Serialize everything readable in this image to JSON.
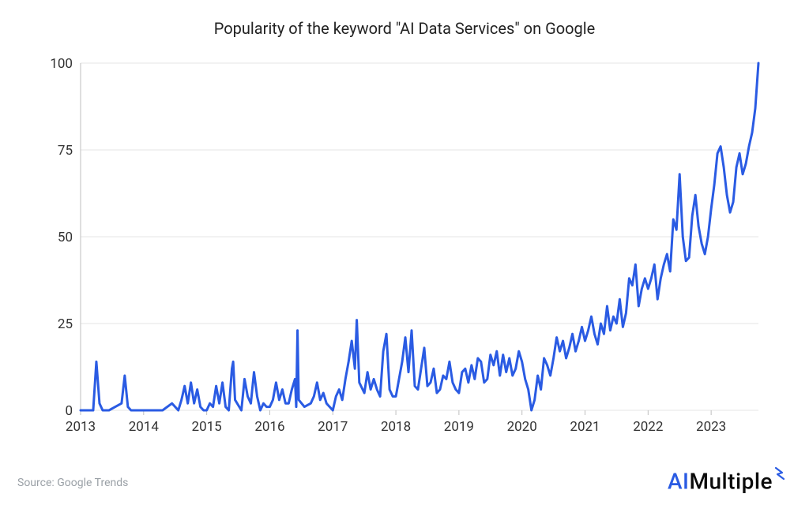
{
  "title": "Popularity of the keyword \"AI Data Services\" on Google",
  "source_label": "Source: Google Trends",
  "brand": {
    "prefix": "AI",
    "rest": "Multiple"
  },
  "chart": {
    "type": "line",
    "background_color": "#ffffff",
    "grid_color": "#e4e4e4",
    "axis_color": "#bfbfbf",
    "line_color": "#2a5be3",
    "line_width": 3,
    "title_fontsize": 20,
    "tick_fontsize": 17,
    "xlim": [
      2013,
      2023.75
    ],
    "ylim": [
      0,
      100
    ],
    "yticks": [
      0,
      25,
      50,
      75,
      100
    ],
    "xticks": [
      2013,
      2014,
      2015,
      2016,
      2017,
      2018,
      2019,
      2020,
      2021,
      2022,
      2023
    ],
    "x": [
      2013.0,
      2013.05,
      2013.1,
      2013.15,
      2013.2,
      2013.25,
      2013.3,
      2013.35,
      2013.4,
      2013.45,
      2013.55,
      2013.65,
      2013.7,
      2013.75,
      2013.8,
      2013.85,
      2013.9,
      2013.95,
      2014.05,
      2014.1,
      2014.2,
      2014.3,
      2014.45,
      2014.55,
      2014.6,
      2014.65,
      2014.7,
      2014.75,
      2014.8,
      2014.85,
      2014.9,
      2014.95,
      2015.0,
      2015.05,
      2015.1,
      2015.15,
      2015.2,
      2015.25,
      2015.3,
      2015.35,
      2015.4,
      2015.42,
      2015.45,
      2015.55,
      2015.6,
      2015.65,
      2015.7,
      2015.75,
      2015.8,
      2015.85,
      2015.9,
      2015.95,
      2016.0,
      2016.05,
      2016.1,
      2016.15,
      2016.2,
      2016.25,
      2016.3,
      2016.35,
      2016.4,
      2016.42,
      2016.44,
      2016.46,
      2016.55,
      2016.65,
      2016.7,
      2016.75,
      2016.8,
      2016.85,
      2016.9,
      2016.95,
      2017.0,
      2017.05,
      2017.1,
      2017.15,
      2017.2,
      2017.25,
      2017.3,
      2017.35,
      2017.38,
      2017.42,
      2017.5,
      2017.55,
      2017.6,
      2017.65,
      2017.7,
      2017.75,
      2017.8,
      2017.85,
      2017.9,
      2017.95,
      2018.0,
      2018.05,
      2018.1,
      2018.15,
      2018.2,
      2018.25,
      2018.3,
      2018.35,
      2018.4,
      2018.45,
      2018.5,
      2018.55,
      2018.6,
      2018.65,
      2018.7,
      2018.75,
      2018.8,
      2018.85,
      2018.9,
      2018.95,
      2019.0,
      2019.05,
      2019.1,
      2019.15,
      2019.2,
      2019.25,
      2019.3,
      2019.35,
      2019.4,
      2019.45,
      2019.5,
      2019.55,
      2019.6,
      2019.65,
      2019.7,
      2019.75,
      2019.8,
      2019.85,
      2019.9,
      2019.95,
      2020.0,
      2020.05,
      2020.1,
      2020.15,
      2020.2,
      2020.25,
      2020.3,
      2020.35,
      2020.4,
      2020.45,
      2020.5,
      2020.55,
      2020.6,
      2020.65,
      2020.7,
      2020.75,
      2020.8,
      2020.85,
      2020.9,
      2020.95,
      2021.0,
      2021.05,
      2021.1,
      2021.15,
      2021.2,
      2021.25,
      2021.3,
      2021.35,
      2021.4,
      2021.45,
      2021.5,
      2021.55,
      2021.6,
      2021.65,
      2021.7,
      2021.75,
      2021.8,
      2021.85,
      2021.9,
      2021.95,
      2022.0,
      2022.05,
      2022.1,
      2022.15,
      2022.2,
      2022.25,
      2022.3,
      2022.35,
      2022.4,
      2022.45,
      2022.5,
      2022.55,
      2022.6,
      2022.65,
      2022.7,
      2022.75,
      2022.8,
      2022.85,
      2022.9,
      2022.95,
      2023.0,
      2023.05,
      2023.1,
      2023.15,
      2023.2,
      2023.25,
      2023.3,
      2023.35,
      2023.4,
      2023.45,
      2023.5,
      2023.55,
      2023.6,
      2023.65,
      2023.7,
      2023.75
    ],
    "y": [
      0,
      0,
      0,
      0,
      0,
      14,
      2,
      0,
      0,
      0,
      1,
      2,
      10,
      1,
      0,
      0,
      0,
      0,
      0,
      0,
      0,
      0,
      2,
      0,
      3,
      7,
      2,
      8,
      2,
      6,
      1,
      0,
      0,
      2,
      1,
      7,
      2,
      8,
      1,
      0,
      12,
      14,
      3,
      0,
      9,
      4,
      2,
      11,
      4,
      0,
      2,
      1,
      1,
      3,
      8,
      3,
      6,
      2,
      2,
      6,
      9,
      1,
      23,
      3,
      1,
      2,
      4,
      8,
      3,
      5,
      2,
      1,
      0,
      4,
      6,
      3,
      9,
      14,
      20,
      12,
      26,
      8,
      5,
      11,
      6,
      9,
      6,
      4,
      17,
      22,
      6,
      4,
      4,
      9,
      14,
      21,
      11,
      23,
      7,
      6,
      12,
      18,
      7,
      8,
      12,
      5,
      6,
      10,
      9,
      14,
      8,
      6,
      5,
      11,
      12,
      8,
      13,
      9,
      15,
      14,
      8,
      9,
      16,
      13,
      17,
      10,
      16,
      11,
      15,
      10,
      12,
      17,
      14,
      9,
      6,
      0,
      3,
      10,
      6,
      15,
      13,
      10,
      15,
      21,
      17,
      20,
      15,
      18,
      22,
      17,
      20,
      24,
      20,
      23,
      27,
      22,
      19,
      25,
      22,
      30,
      23,
      27,
      25,
      32,
      24,
      28,
      38,
      36,
      42,
      30,
      35,
      38,
      35,
      38,
      42,
      32,
      38,
      42,
      45,
      40,
      55,
      52,
      68,
      50,
      43,
      44,
      56,
      62,
      53,
      48,
      45,
      50,
      58,
      65,
      74,
      76,
      70,
      62,
      57,
      60,
      70,
      74,
      68,
      71,
      76,
      80,
      87,
      100
    ]
  }
}
